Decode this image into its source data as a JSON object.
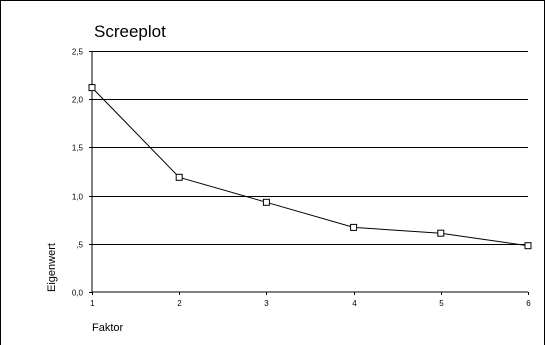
{
  "chart_data": {
    "type": "line",
    "title": "Screeplot",
    "xlabel": "Faktor",
    "ylabel": "Eigenwert",
    "x": [
      1,
      2,
      3,
      4,
      5,
      6
    ],
    "xticks": [
      "1",
      "2",
      "3",
      "4",
      "5",
      "6"
    ],
    "yticks": [
      "0,0",
      ",5",
      "1,0",
      "1,5",
      "2,0",
      "2,5"
    ],
    "yticks_values": [
      0,
      0.5,
      1.0,
      1.5,
      2.0,
      2.5
    ],
    "ylim": [
      0,
      2.5
    ],
    "xlim": [
      1,
      6
    ],
    "series": [
      {
        "values": [
          2.12,
          1.19,
          0.93,
          0.67,
          0.61,
          0.48
        ]
      }
    ],
    "marker": "square",
    "grid": "horizontal",
    "colors": {
      "line": "#000000",
      "grid": "#000000",
      "background": "#ffffff"
    }
  }
}
